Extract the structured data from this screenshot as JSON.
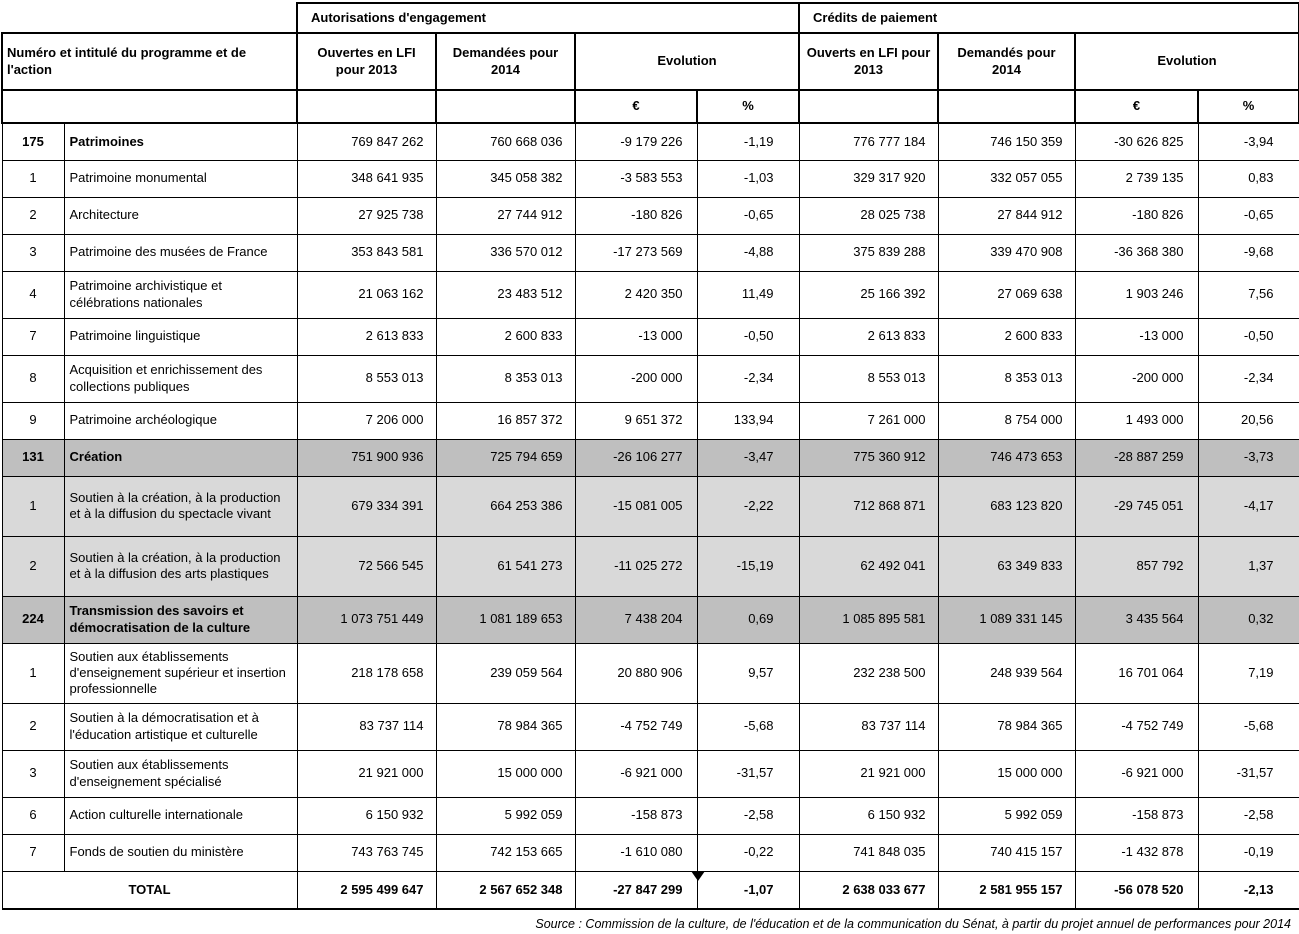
{
  "table": {
    "header": {
      "group_ae": "Autorisations d'engagement",
      "group_cp": "Crédits de paiement",
      "col_program": "Numéro et intitulé du programme et de l'action",
      "ae_lfi": "Ouvertes en LFI pour 2013",
      "ae_dem": "Demandées pour 2014",
      "cp_lfi": "Ouverts en LFI pour 2013",
      "cp_dem": "Demandés pour 2014",
      "evolution": "Evolution",
      "euro": "€",
      "pct": "%"
    },
    "rows": [
      {
        "num": "175",
        "name": "Patrimoines",
        "type": "program",
        "bg": "white",
        "lines": 1,
        "values": [
          "769 847 262",
          "760 668 036",
          "-9 179 226",
          "-1,19",
          "776 777 184",
          "746 150 359",
          "-30 626 825",
          "-3,94"
        ]
      },
      {
        "num": "1",
        "name": "Patrimoine monumental",
        "type": "action",
        "bg": "white",
        "lines": 1,
        "values": [
          "348 641 935",
          "345 058 382",
          "-3 583 553",
          "-1,03",
          "329 317 920",
          "332 057 055",
          "2 739 135",
          "0,83"
        ]
      },
      {
        "num": "2",
        "name": "Architecture",
        "type": "action",
        "bg": "white",
        "lines": 1,
        "values": [
          "27 925 738",
          "27 744 912",
          "-180 826",
          "-0,65",
          "28 025 738",
          "27 844 912",
          "-180 826",
          "-0,65"
        ]
      },
      {
        "num": "3",
        "name": "Patrimoine des musées de France",
        "type": "action",
        "bg": "white",
        "lines": 1,
        "values": [
          "353 843 581",
          "336 570 012",
          "-17 273 569",
          "-4,88",
          "375 839 288",
          "339 470 908",
          "-36 368 380",
          "-9,68"
        ]
      },
      {
        "num": "4",
        "name": "Patrimoine archivistique et célébrations nationales",
        "type": "action",
        "bg": "white",
        "lines": 2,
        "values": [
          "21 063 162",
          "23 483 512",
          "2 420 350",
          "11,49",
          "25 166 392",
          "27 069 638",
          "1 903 246",
          "7,56"
        ]
      },
      {
        "num": "7",
        "name": "Patrimoine linguistique",
        "type": "action",
        "bg": "white",
        "lines": 1,
        "values": [
          "2 613 833",
          "2 600 833",
          "-13 000",
          "-0,50",
          "2 613 833",
          "2 600 833",
          "-13 000",
          "-0,50"
        ]
      },
      {
        "num": "8",
        "name": "Acquisition et enrichissement des collections publiques",
        "type": "action",
        "bg": "white",
        "lines": 2,
        "values": [
          "8 553 013",
          "8 353 013",
          "-200 000",
          "-2,34",
          "8 553 013",
          "8 353 013",
          "-200 000",
          "-2,34"
        ]
      },
      {
        "num": "9",
        "name": "Patrimoine archéologique",
        "type": "action",
        "bg": "white",
        "lines": 1,
        "values": [
          "7 206 000",
          "16 857 372",
          "9 651 372",
          "133,94",
          "7 261 000",
          "8 754 000",
          "1 493 000",
          "20,56"
        ]
      },
      {
        "num": "131",
        "name": "Création",
        "type": "program",
        "bg": "dark",
        "lines": 1,
        "values": [
          "751 900 936",
          "725 794 659",
          "-26 106 277",
          "-3,47",
          "775 360 912",
          "746 473 653",
          "-28 887 259",
          "-3,73"
        ]
      },
      {
        "num": "1",
        "name": "Soutien à la création, à la production et à la diffusion du spectacle vivant",
        "type": "action",
        "bg": "light",
        "lines": 3,
        "values": [
          "679 334 391",
          "664 253 386",
          "-15 081 005",
          "-2,22",
          "712 868 871",
          "683 123 820",
          "-29 745 051",
          "-4,17"
        ]
      },
      {
        "num": "2",
        "name": "Soutien à la création, à la production et à la diffusion des arts plastiques",
        "type": "action",
        "bg": "light",
        "lines": 3,
        "values": [
          "72 566 545",
          "61 541 273",
          "-11 025 272",
          "-15,19",
          "62 492 041",
          "63 349 833",
          "857 792",
          "1,37"
        ]
      },
      {
        "num": "224",
        "name": "Transmission des savoirs et démocratisation de la culture",
        "type": "program",
        "bg": "dark",
        "lines": 2,
        "values": [
          "1 073 751 449",
          "1 081 189 653",
          "7 438 204",
          "0,69",
          "1 085 895 581",
          "1 089 331 145",
          "3 435 564",
          "0,32"
        ]
      },
      {
        "num": "1",
        "name": "Soutien aux établissements d'enseignement supérieur et insertion professionnelle",
        "type": "action",
        "bg": "white",
        "lines": 3,
        "values": [
          "218 178 658",
          "239 059 564",
          "20 880 906",
          "9,57",
          "232 238 500",
          "248 939 564",
          "16 701 064",
          "7,19"
        ]
      },
      {
        "num": "2",
        "name": "Soutien à la démocratisation et à l'éducation artistique et culturelle",
        "type": "action",
        "bg": "white",
        "lines": 2,
        "values": [
          "83 737 114",
          "78 984 365",
          "-4 752 749",
          "-5,68",
          "83 737 114",
          "78 984 365",
          "-4 752 749",
          "-5,68"
        ]
      },
      {
        "num": "3",
        "name": "Soutien aux établissements d'enseignement spécialisé",
        "type": "action",
        "bg": "white",
        "lines": 2,
        "values": [
          "21 921 000",
          "15 000 000",
          "-6 921 000",
          "-31,57",
          "21 921 000",
          "15 000 000",
          "-6 921 000",
          "-31,57"
        ]
      },
      {
        "num": "6",
        "name": "Action culturelle internationale",
        "type": "action",
        "bg": "white",
        "lines": 1,
        "values": [
          "6 150 932",
          "5 992 059",
          "-158 873",
          "-2,58",
          "6 150 932",
          "5 992 059",
          "-158 873",
          "-2,58"
        ]
      },
      {
        "num": "7",
        "name": "Fonds de soutien du ministère",
        "type": "action",
        "bg": "white",
        "lines": 1,
        "values": [
          "743 763 745",
          "742 153 665",
          "-1 610 080",
          "-0,22",
          "741 848 035",
          "740 415 157",
          "-1 432 878",
          "-0,19"
        ]
      }
    ],
    "total": {
      "label": "TOTAL",
      "values": [
        "2 595 499 647",
        "2 567 652 348",
        "-27 847 299",
        "-1,07",
        "2 638 033 677",
        "2 581 955 157",
        "-56 078 520",
        "-2,13"
      ]
    }
  },
  "source": "Source : Commission de la culture, de l'éducation et de la communication du Sénat, à partir du projet annuel de performances pour 2014",
  "colors": {
    "program_row_bg": "#bfbfbf",
    "action_row_bg": "#d9d9d9",
    "border": "#000000"
  }
}
